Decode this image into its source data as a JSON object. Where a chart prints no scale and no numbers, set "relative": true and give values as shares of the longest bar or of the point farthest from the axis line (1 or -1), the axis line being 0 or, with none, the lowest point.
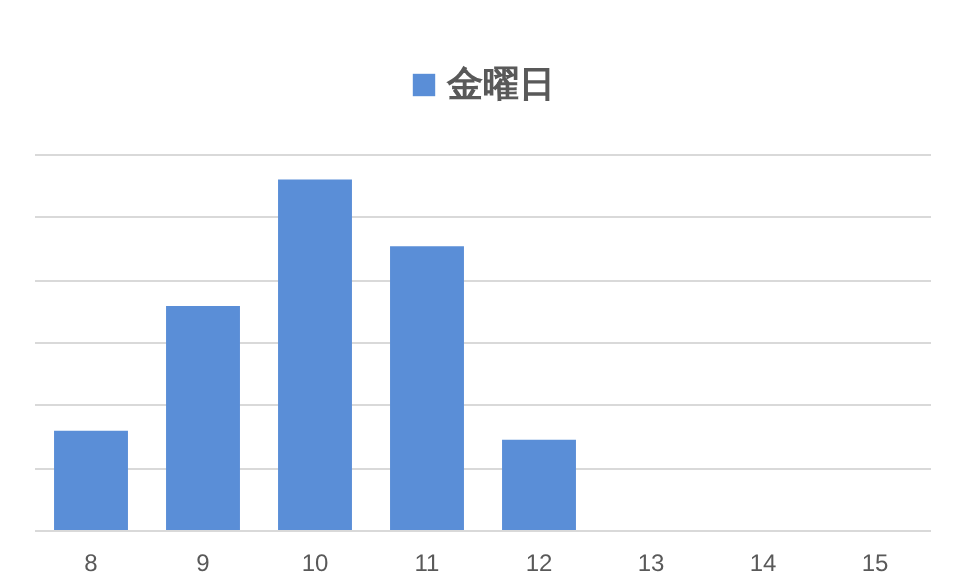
{
  "chart_data": {
    "type": "bar",
    "relative": true,
    "categories": [
      "8",
      "9",
      "10",
      "11",
      "12",
      "13",
      "14",
      "15"
    ],
    "series": [
      {
        "name": "金曜日",
        "color": "#5a8ed7",
        "values": [
          0.285,
          0.64,
          1,
          0.81,
          0.26,
          0,
          0,
          0
        ]
      }
    ],
    "grid": "y",
    "legend": "top"
  }
}
